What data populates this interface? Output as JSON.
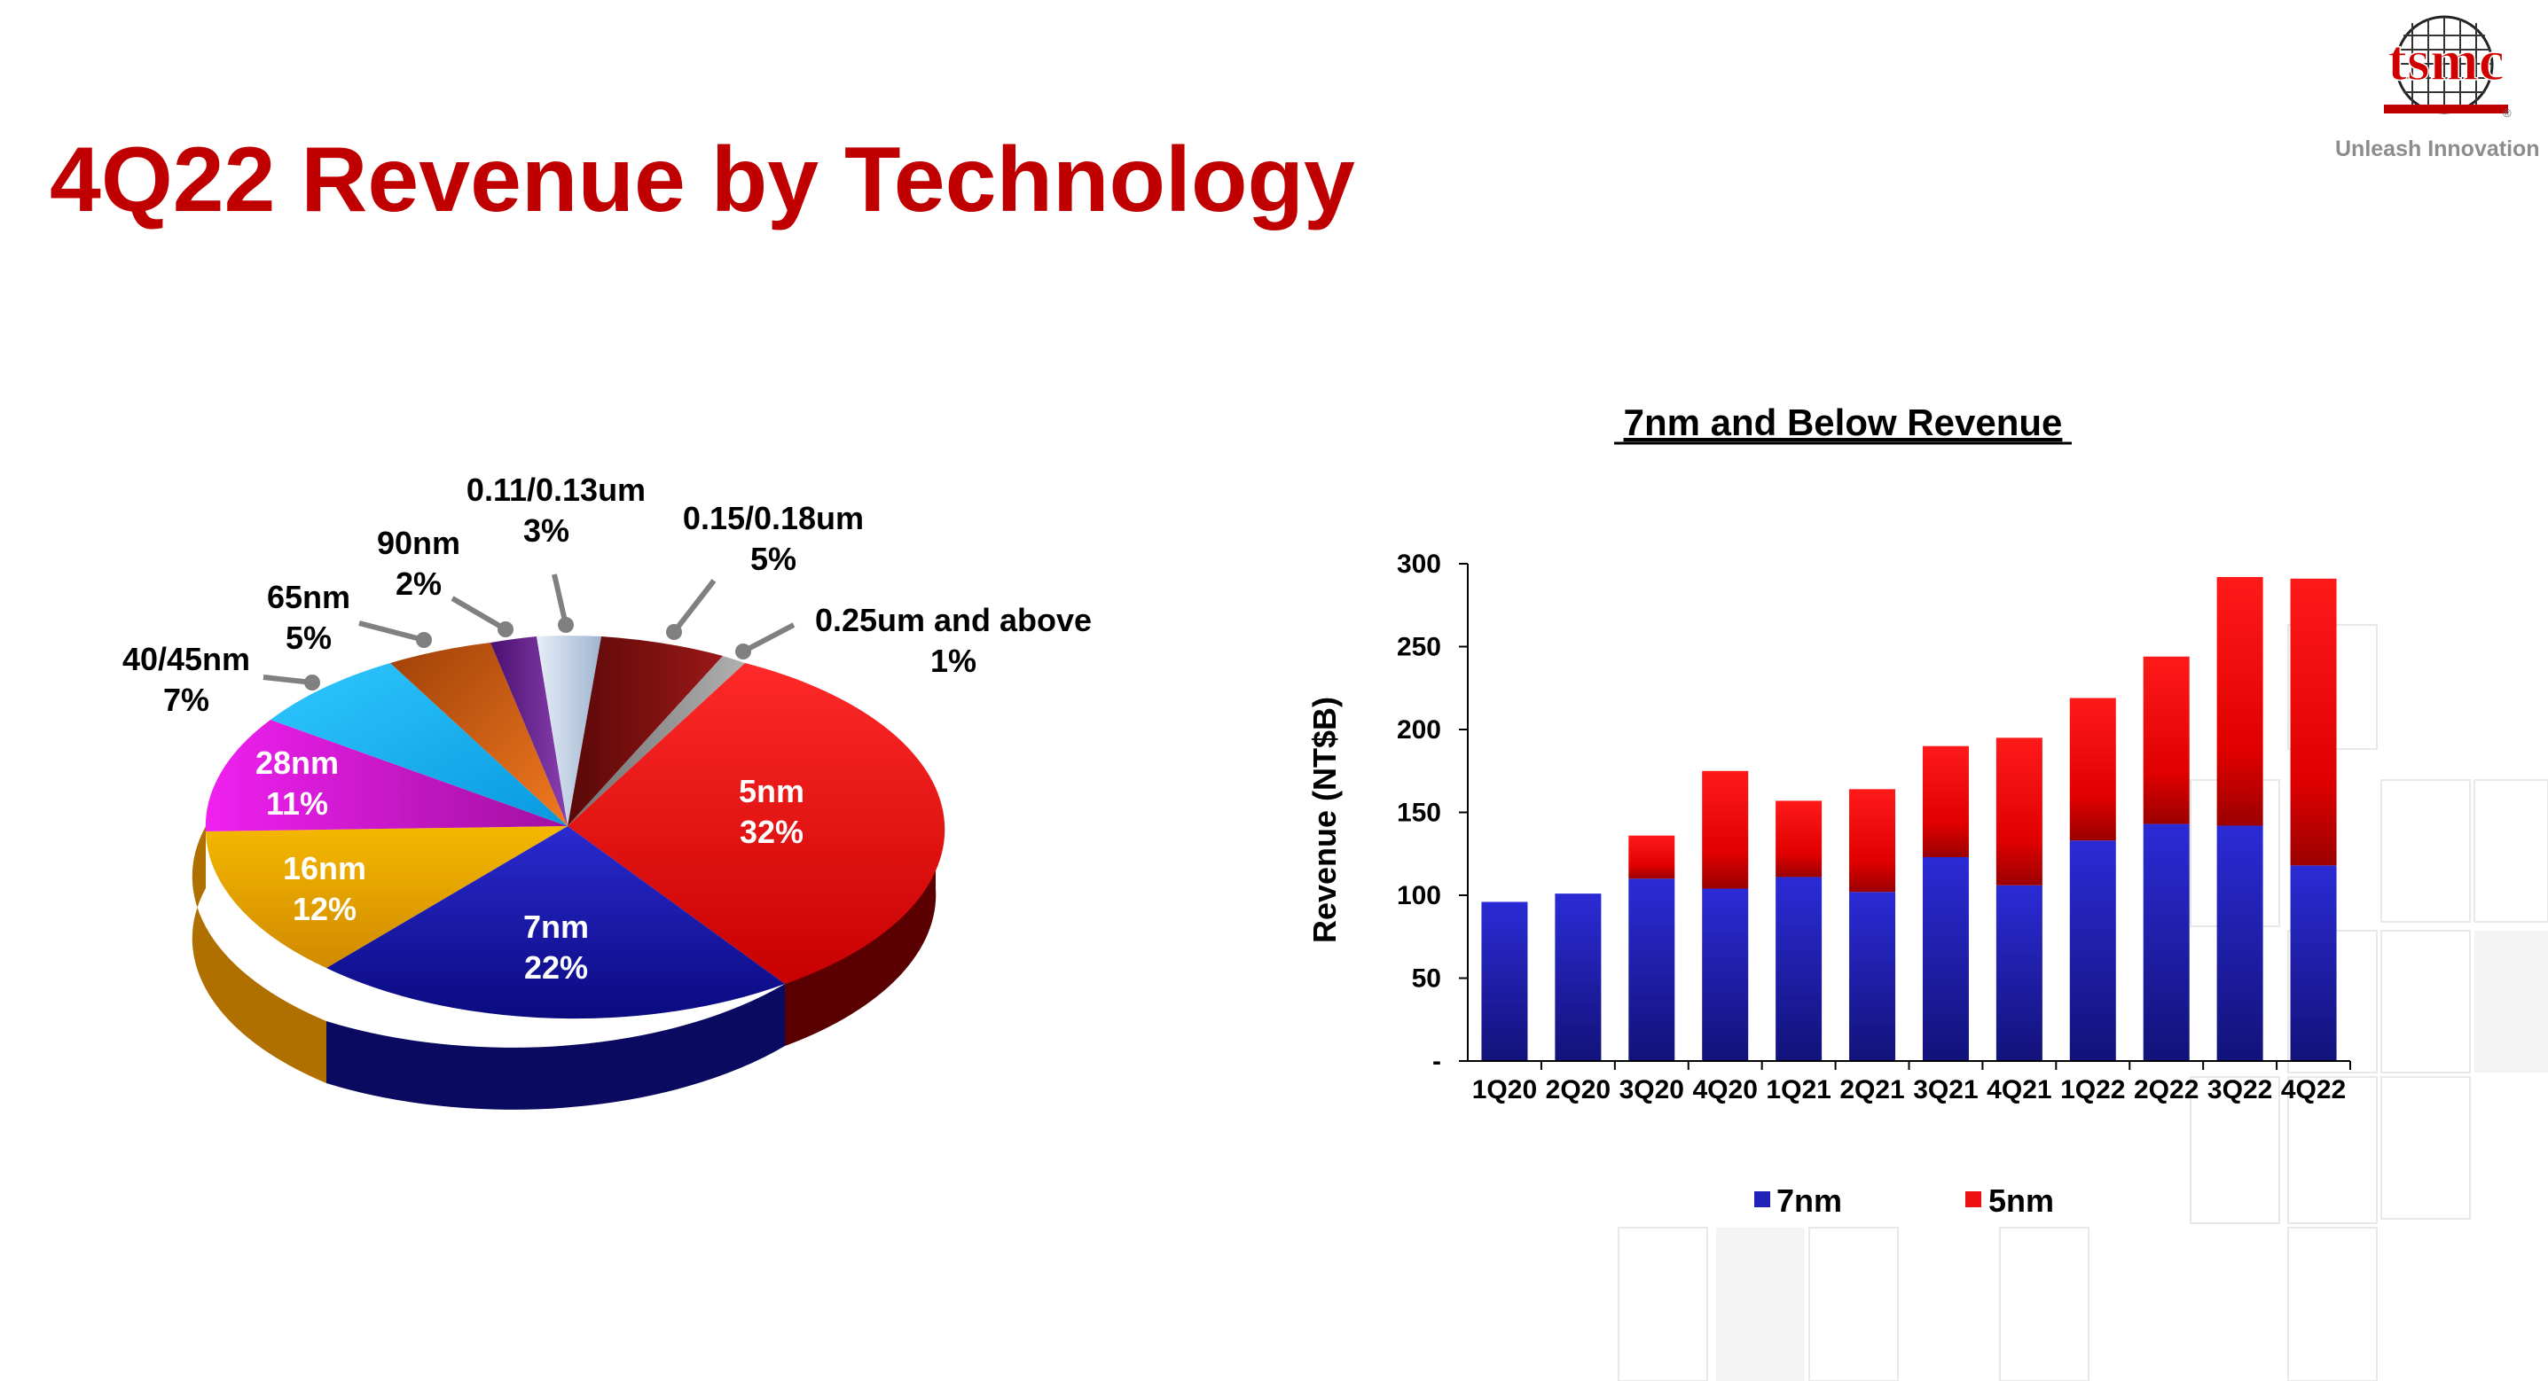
{
  "slide": {
    "title": "4Q22 Revenue by Technology",
    "logo_text": "tsmc",
    "logo_mark": "®",
    "tagline": "Unleash Innovation"
  },
  "chart_data": [
    {
      "type": "pie",
      "title": "",
      "slices": [
        {
          "label": "5nm",
          "percent_text": "32%",
          "value": 32,
          "color": "#e60000"
        },
        {
          "label": "7nm",
          "percent_text": "22%",
          "value": 22,
          "color": "#1a1aa6"
        },
        {
          "label": "16nm",
          "percent_text": "12%",
          "value": 12,
          "color": "#e6a800"
        },
        {
          "label": "28nm",
          "percent_text": "11%",
          "value": 11,
          "color": "#cc1acc"
        },
        {
          "label": "40/45nm",
          "percent_text": "7%",
          "value": 7,
          "color": "#14aff0"
        },
        {
          "label": "65nm",
          "percent_text": "5%",
          "value": 5,
          "color": "#e6661a"
        },
        {
          "label": "90nm",
          "percent_text": "2%",
          "value": 2,
          "color": "#6b2a8f"
        },
        {
          "label": "0.11/0.13um",
          "percent_text": "3%",
          "value": 3,
          "color": "#b8cbe0"
        },
        {
          "label": "0.15/0.18um",
          "percent_text": "5%",
          "value": 5,
          "color": "#7a1010"
        },
        {
          "label": "0.25um and above",
          "percent_text": "1%",
          "value": 1,
          "color": "#a0a0a0"
        }
      ]
    },
    {
      "type": "bar",
      "stacked": true,
      "title": "7nm and Below Revenue",
      "ylabel": "Revenue (NT$B)",
      "xlabel": "",
      "ylim": [
        0,
        300
      ],
      "yticks": [
        {
          "value": 0,
          "label": "-"
        },
        {
          "value": 50,
          "label": "50"
        },
        {
          "value": 100,
          "label": "100"
        },
        {
          "value": 150,
          "label": "150"
        },
        {
          "value": 200,
          "label": "200"
        },
        {
          "value": 250,
          "label": "250"
        },
        {
          "value": 300,
          "label": "300"
        }
      ],
      "categories": [
        "1Q20",
        "2Q20",
        "3Q20",
        "4Q20",
        "1Q21",
        "2Q21",
        "3Q21",
        "4Q21",
        "1Q22",
        "2Q22",
        "3Q22",
        "4Q22"
      ],
      "series": [
        {
          "name": "7nm",
          "color": "#2222bb",
          "values": [
            96,
            101,
            110,
            104,
            111,
            102,
            123,
            106,
            133,
            143,
            142,
            118
          ]
        },
        {
          "name": "5nm",
          "color": "#ee1111",
          "values": [
            0,
            0,
            26,
            71,
            46,
            62,
            67,
            89,
            86,
            101,
            150,
            173
          ]
        }
      ],
      "legend_position": "bottom",
      "grid": false
    }
  ]
}
